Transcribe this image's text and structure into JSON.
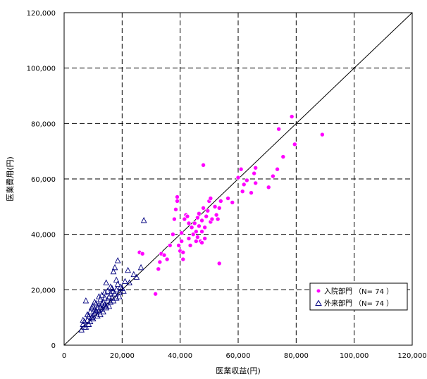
{
  "chart_data": {
    "type": "scatter",
    "title": "",
    "xlabel": "医業収益(円)",
    "ylabel": "医業費用(円)",
    "xlim": [
      0,
      120000
    ],
    "ylim": [
      0,
      120000
    ],
    "x_ticks": [
      "0",
      "20,000",
      "40,000",
      "60,000",
      "80,000",
      "100,000",
      "120,000"
    ],
    "y_ticks": [
      "0",
      "20,000",
      "40,000",
      "60,000",
      "80,000",
      "100,000",
      "120,000"
    ],
    "grid": true,
    "grid_style": "dashed",
    "reference_line": "y = x",
    "legend_position": "bottom-right",
    "series": [
      {
        "name": "入院部門 （N= 74 ）",
        "marker": "filled-circle",
        "color": "#ff00ff",
        "points": [
          [
            26000,
            33500
          ],
          [
            27000,
            33000
          ],
          [
            31500,
            18500
          ],
          [
            32500,
            27500
          ],
          [
            33000,
            30000
          ],
          [
            33500,
            33000
          ],
          [
            34500,
            32500
          ],
          [
            35500,
            31000
          ],
          [
            36500,
            36000
          ],
          [
            37500,
            40000
          ],
          [
            38000,
            45500
          ],
          [
            38500,
            49000
          ],
          [
            39000,
            53500
          ],
          [
            39000,
            52000
          ],
          [
            39500,
            36000
          ],
          [
            40000,
            34000
          ],
          [
            40500,
            40500
          ],
          [
            40500,
            37500
          ],
          [
            41000,
            31000
          ],
          [
            41000,
            33500
          ],
          [
            41500,
            45500
          ],
          [
            42000,
            47000
          ],
          [
            42500,
            46500
          ],
          [
            43000,
            38500
          ],
          [
            43500,
            36000
          ],
          [
            44000,
            42500
          ],
          [
            44500,
            40000
          ],
          [
            45000,
            44000
          ],
          [
            45500,
            37500
          ],
          [
            45500,
            41000
          ],
          [
            46000,
            46000
          ],
          [
            46000,
            39000
          ],
          [
            46500,
            47500
          ],
          [
            46500,
            43000
          ],
          [
            47000,
            37500
          ],
          [
            47500,
            45000
          ],
          [
            47500,
            41000
          ],
          [
            48000,
            65000
          ],
          [
            48000,
            49500
          ],
          [
            48500,
            38500
          ],
          [
            48500,
            42500
          ],
          [
            49000,
            46500
          ],
          [
            49500,
            48500
          ],
          [
            50000,
            52000
          ],
          [
            50500,
            53000
          ],
          [
            50500,
            44500
          ],
          [
            51000,
            45500
          ],
          [
            52000,
            50000
          ],
          [
            52500,
            47000
          ],
          [
            53000,
            45500
          ],
          [
            53500,
            49500
          ],
          [
            53500,
            29500
          ],
          [
            54000,
            52000
          ],
          [
            56500,
            53000
          ],
          [
            58000,
            51500
          ],
          [
            60000,
            60500
          ],
          [
            61000,
            63500
          ],
          [
            61500,
            55500
          ],
          [
            62000,
            58000
          ],
          [
            63000,
            59500
          ],
          [
            64500,
            55000
          ],
          [
            65500,
            62000
          ],
          [
            66000,
            58500
          ],
          [
            66000,
            64000
          ],
          [
            70500,
            57000
          ],
          [
            72000,
            61000
          ],
          [
            73500,
            63500
          ],
          [
            74000,
            78000
          ],
          [
            75500,
            68000
          ],
          [
            78500,
            82500
          ],
          [
            79500,
            72500
          ],
          [
            89000,
            76000
          ],
          [
            47500,
            37000
          ],
          [
            43000,
            44000
          ]
        ]
      },
      {
        "name": "外来部門 （N= 74 ）",
        "marker": "open-triangle",
        "color": "#00007f",
        "points": [
          [
            6000,
            5500
          ],
          [
            6500,
            7500
          ],
          [
            7000,
            8500
          ],
          [
            7500,
            6500
          ],
          [
            7500,
            16000
          ],
          [
            8000,
            9000
          ],
          [
            8500,
            10500
          ],
          [
            9000,
            8500
          ],
          [
            9000,
            12000
          ],
          [
            9500,
            10000
          ],
          [
            10000,
            9500
          ],
          [
            10000,
            14000
          ],
          [
            10500,
            11500
          ],
          [
            10500,
            13000
          ],
          [
            11000,
            12000
          ],
          [
            11000,
            15000
          ],
          [
            11500,
            10500
          ],
          [
            11500,
            13500
          ],
          [
            12000,
            12500
          ],
          [
            12000,
            14500
          ],
          [
            12500,
            11000
          ],
          [
            12500,
            16500
          ],
          [
            13000,
            13000
          ],
          [
            13000,
            18000
          ],
          [
            13500,
            12000
          ],
          [
            13500,
            15500
          ],
          [
            14000,
            14500
          ],
          [
            14000,
            17000
          ],
          [
            14500,
            13500
          ],
          [
            14500,
            22500
          ],
          [
            15000,
            16000
          ],
          [
            15000,
            19500
          ],
          [
            15500,
            14000
          ],
          [
            16000,
            15500
          ],
          [
            16000,
            21000
          ],
          [
            16500,
            17000
          ],
          [
            17000,
            26500
          ],
          [
            17000,
            16000
          ],
          [
            17500,
            18500
          ],
          [
            17500,
            28000
          ],
          [
            18000,
            17000
          ],
          [
            18000,
            20000
          ],
          [
            18500,
            30500
          ],
          [
            19000,
            19000
          ],
          [
            19500,
            21000
          ],
          [
            20000,
            20500
          ],
          [
            21000,
            23000
          ],
          [
            22000,
            27000
          ],
          [
            24000,
            25500
          ],
          [
            26500,
            28000
          ],
          [
            27500,
            45000
          ],
          [
            6500,
            9000
          ],
          [
            8000,
            11000
          ],
          [
            9500,
            13500
          ],
          [
            10500,
            15500
          ],
          [
            11000,
            12500
          ],
          [
            12000,
            17500
          ],
          [
            13000,
            15000
          ],
          [
            14000,
            19000
          ],
          [
            15500,
            17500
          ],
          [
            16500,
            20500
          ],
          [
            17000,
            19500
          ],
          [
            18500,
            22000
          ],
          [
            19000,
            17500
          ],
          [
            20500,
            19500
          ],
          [
            22500,
            22500
          ],
          [
            25000,
            24500
          ],
          [
            8500,
            7500
          ],
          [
            10000,
            10500
          ],
          [
            12500,
            13500
          ],
          [
            14500,
            14000
          ],
          [
            16000,
            18500
          ],
          [
            18000,
            23500
          ],
          [
            7000,
            6500
          ]
        ]
      }
    ]
  }
}
